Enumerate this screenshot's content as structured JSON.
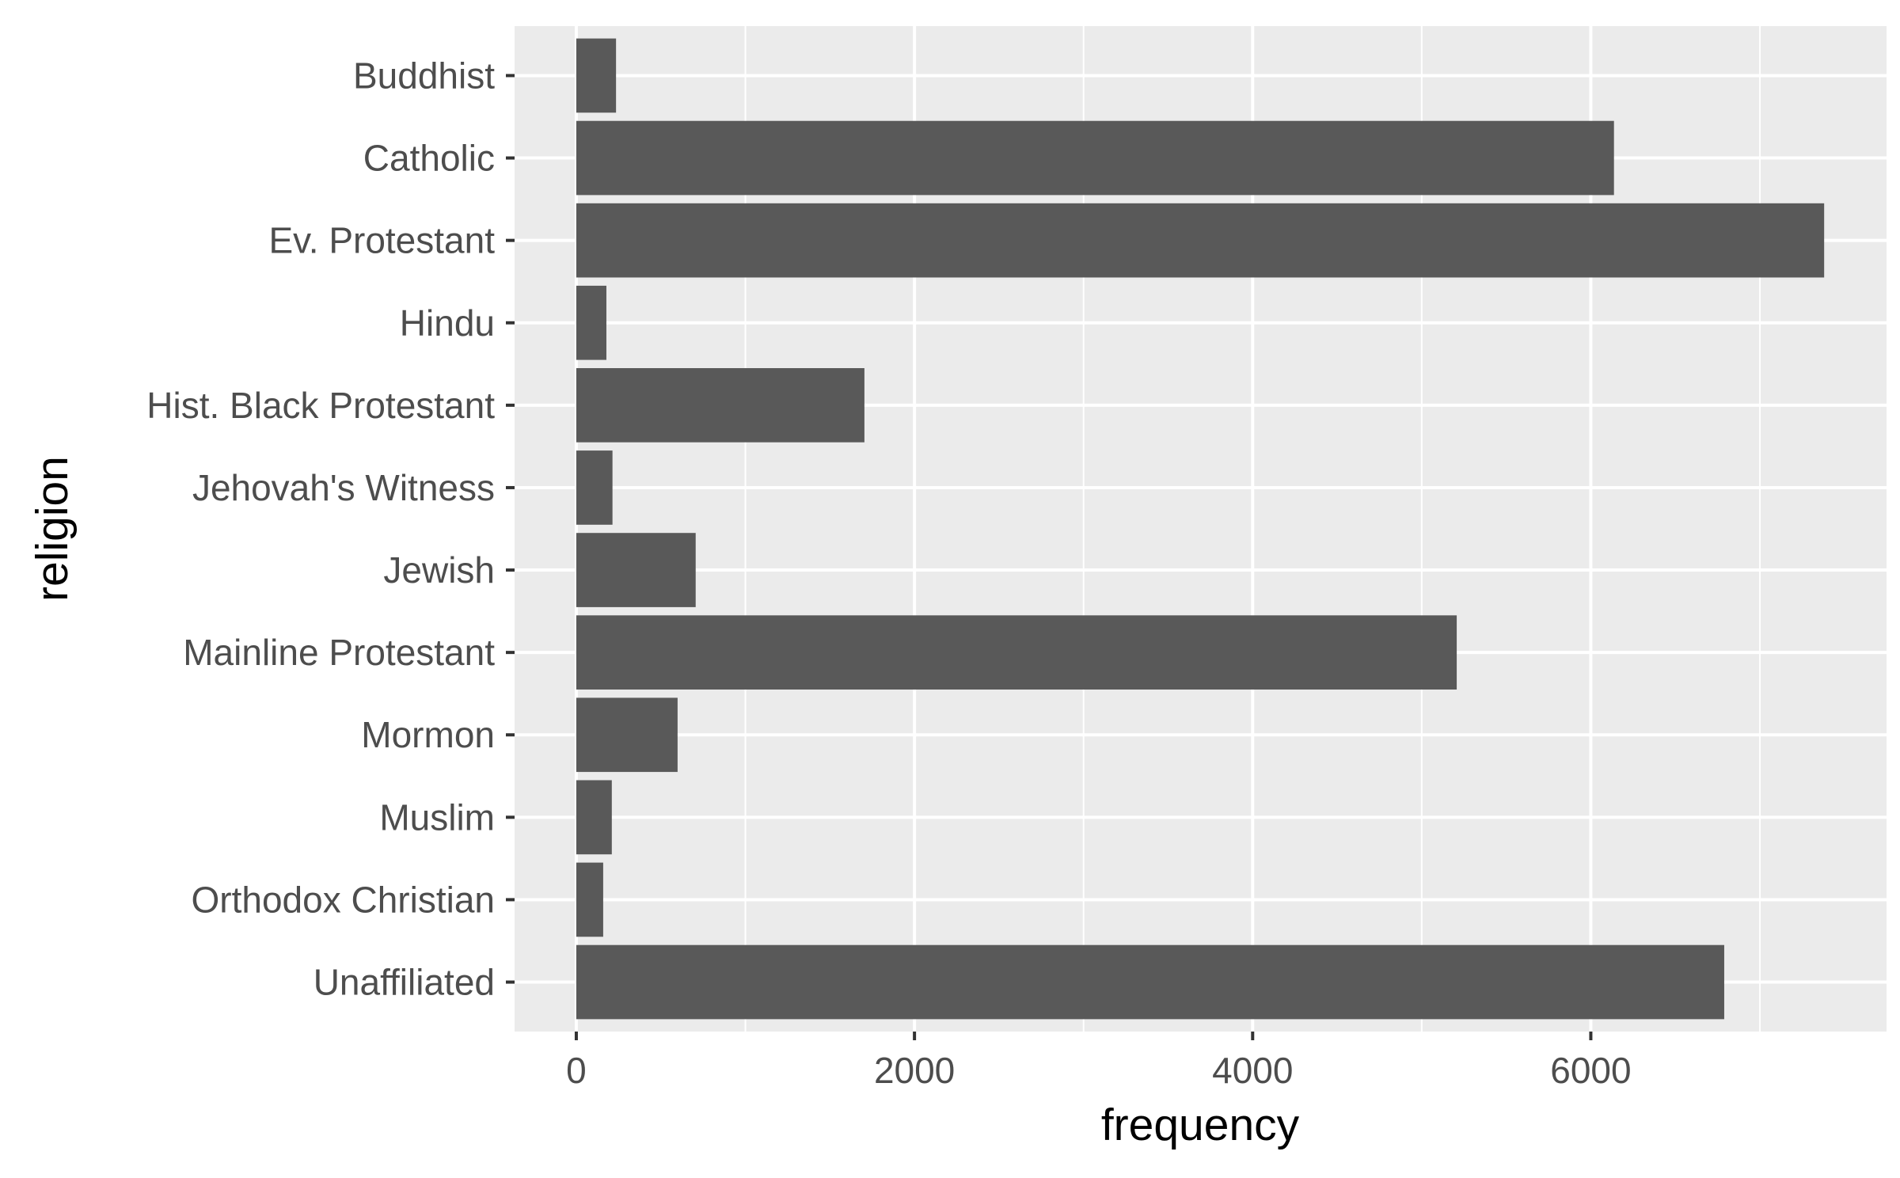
{
  "chart_data": {
    "type": "bar",
    "orientation": "horizontal",
    "xlabel": "frequency",
    "ylabel": "religion",
    "categories": [
      "Buddhist",
      "Catholic",
      "Ev. Protestant",
      "Hindu",
      "Hist. Black Protestant",
      "Jehovah's Witness",
      "Jewish",
      "Mainline Protestant",
      "Mormon",
      "Muslim",
      "Orthodox Christian",
      "Unaffiliated"
    ],
    "values": [
      235,
      6137,
      7380,
      178,
      1704,
      214,
      706,
      5207,
      599,
      210,
      159,
      6789
    ],
    "xlim": [
      -365,
      7749
    ],
    "x_ticks": [
      0,
      2000,
      4000,
      6000
    ],
    "x_tick_labels": [
      "0",
      "2000",
      "4000",
      "6000"
    ],
    "grid": true,
    "colors": {
      "bar": "#595959",
      "panel_background": "#ebebeb",
      "grid_line": "#ffffff",
      "tick_label": "#4d4d4d",
      "tick_mark": "#333333",
      "axis_title": "#000000"
    }
  }
}
